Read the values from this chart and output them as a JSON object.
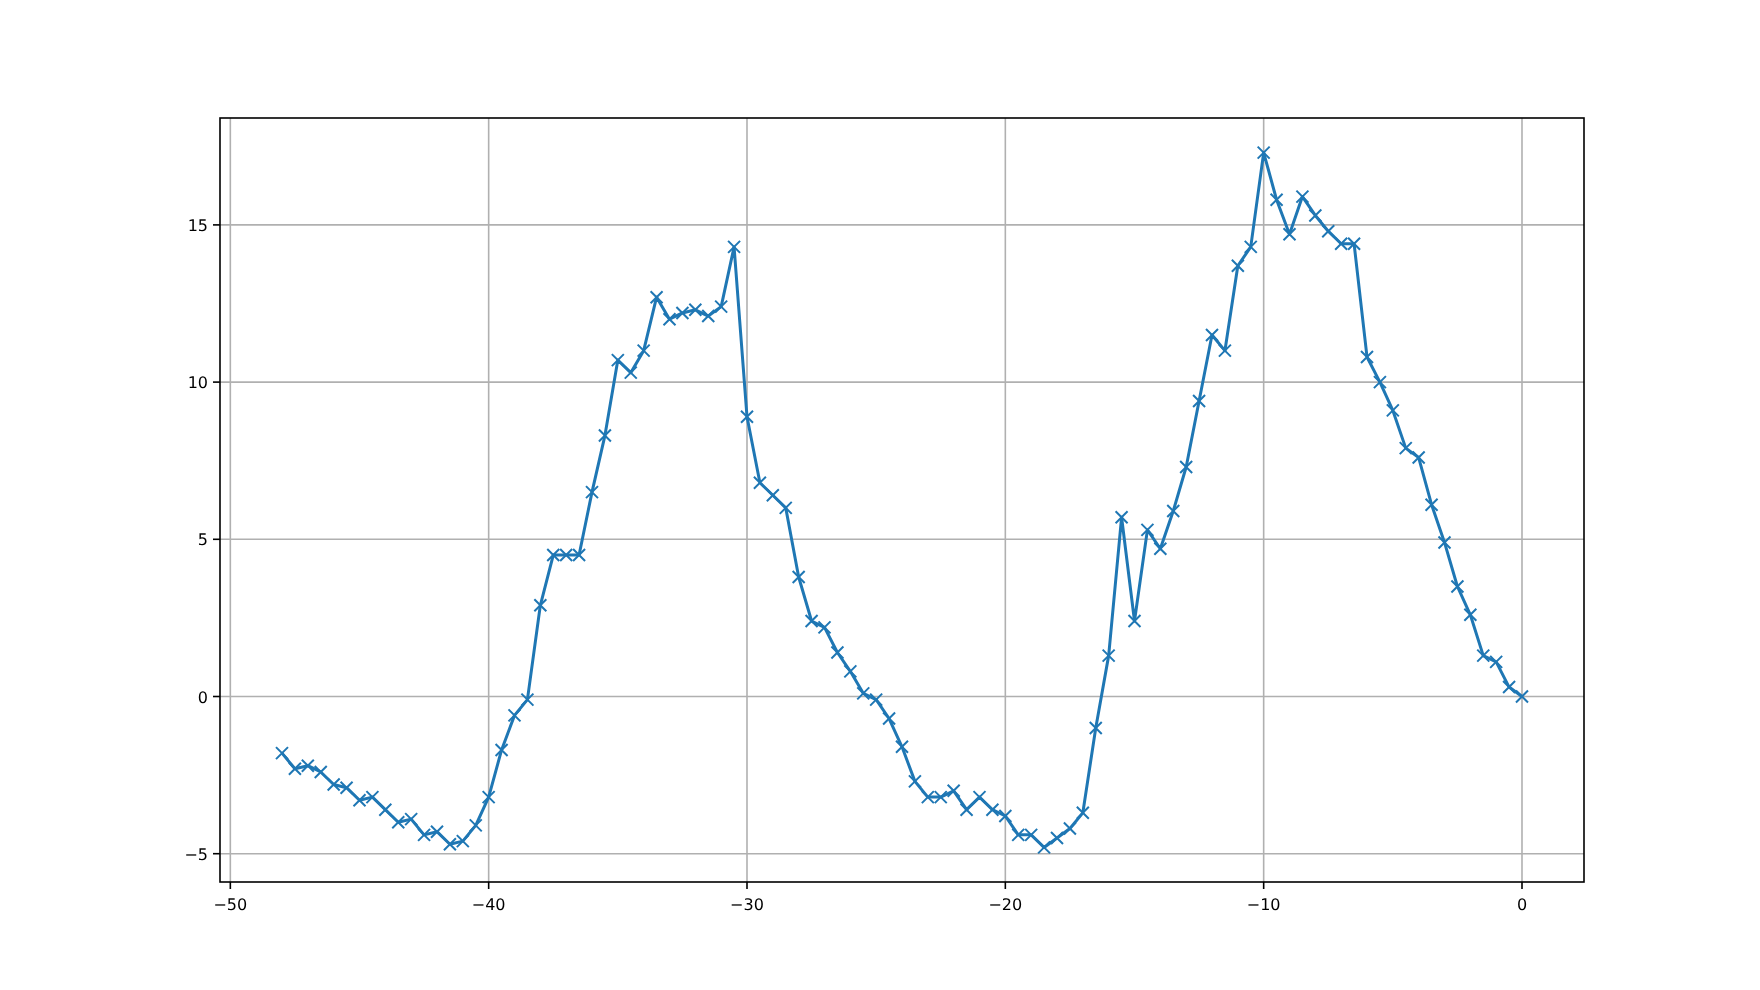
{
  "chart_data": {
    "type": "line",
    "marker": "cross",
    "grid": true,
    "xlim": [
      -50.4,
      2.4
    ],
    "ylim": [
      -5.9,
      18.4
    ],
    "xticks": [
      -50,
      -40,
      -30,
      -20,
      -10,
      0
    ],
    "yticks": [
      -5,
      0,
      5,
      10,
      15
    ],
    "x": [
      -48,
      -47.5,
      -47,
      -46.5,
      -46,
      -45.5,
      -45,
      -44.5,
      -44,
      -43.5,
      -43,
      -42.5,
      -42,
      -41.5,
      -41,
      -40.5,
      -40,
      -39.5,
      -39,
      -38.5,
      -38,
      -37.5,
      -37,
      -36.5,
      -36,
      -35.5,
      -35,
      -34.5,
      -34,
      -33.5,
      -33,
      -32.5,
      -32,
      -31.5,
      -31,
      -30.5,
      -30,
      -29.5,
      -29,
      -28.5,
      -28,
      -27.5,
      -27,
      -26.5,
      -26,
      -25.5,
      -25,
      -24.5,
      -24,
      -23.5,
      -23,
      -22.5,
      -22,
      -21.5,
      -21,
      -20.5,
      -20,
      -19.5,
      -19,
      -18.5,
      -18,
      -17.5,
      -17,
      -16.5,
      -16,
      -15.5,
      -15,
      -14.5,
      -14,
      -13.5,
      -13,
      -12.5,
      -12,
      -11.5,
      -11,
      -10.5,
      -10,
      -9.5,
      -9,
      -8.5,
      -8,
      -7.5,
      -7,
      -6.5,
      -6,
      -5.5,
      -5,
      -4.5,
      -4,
      -3.5,
      -3,
      -2.5,
      -2,
      -1.5,
      -1,
      -0.5,
      0
    ],
    "series": [
      {
        "color": "#1f77b4",
        "values": [
          -1.8,
          -2.3,
          -2.2,
          -2.4,
          -2.8,
          -2.9,
          -3.3,
          -3.2,
          -3.6,
          -4.0,
          -3.9,
          -4.4,
          -4.3,
          -4.7,
          -4.6,
          -4.1,
          -3.2,
          -1.7,
          -0.6,
          -0.1,
          2.9,
          4.5,
          4.5,
          4.5,
          6.5,
          8.3,
          10.7,
          10.3,
          11.0,
          12.7,
          12.0,
          12.2,
          12.3,
          12.1,
          12.4,
          14.3,
          8.9,
          6.8,
          6.4,
          6.0,
          3.8,
          2.4,
          2.2,
          1.4,
          0.8,
          0.1,
          -0.1,
          -0.7,
          -1.6,
          -2.7,
          -3.2,
          -3.2,
          -3.0,
          -3.6,
          -3.2,
          -3.6,
          -3.8,
          -4.4,
          -4.4,
          -4.8,
          -4.5,
          -4.2,
          -3.7,
          -1.0,
          1.3,
          5.7,
          2.4,
          5.3,
          4.7,
          5.9,
          7.3,
          9.4,
          11.5,
          11.0,
          13.7,
          14.3,
          17.3,
          15.8,
          14.7,
          15.9,
          15.3,
          14.8,
          14.4,
          14.4,
          10.8,
          10.0,
          9.1,
          7.9,
          7.6,
          6.1,
          4.9,
          3.5,
          2.6,
          1.3,
          1.1,
          0.3,
          0.0
        ]
      }
    ]
  }
}
